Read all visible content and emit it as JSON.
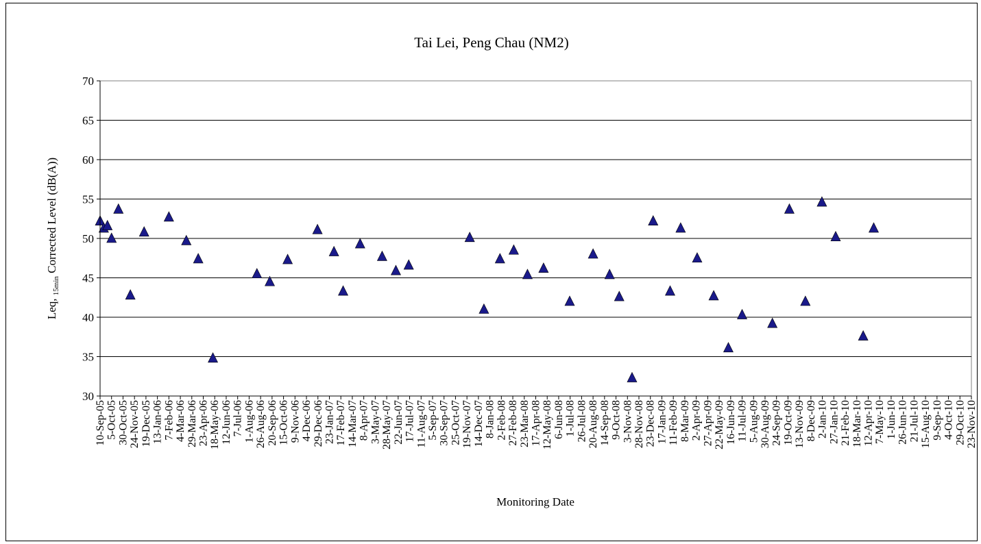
{
  "chart_data": {
    "type": "scatter",
    "title": "Tai Lei, Peng Chau (NM2)",
    "xlabel": "Monitoring Date",
    "ylabel": {
      "base": "Leq, ",
      "sub": "15min",
      "rest": " Corrected Level (dB(A))"
    },
    "ylim": [
      30,
      70
    ],
    "yticks": [
      30,
      35,
      40,
      45,
      50,
      55,
      60,
      65,
      70
    ],
    "grid": true,
    "marker": "triangle",
    "marker_color": "#1a1a8a",
    "x_start_label": "10-Sep-05",
    "x_end_label": "23-Nov-10",
    "tick_labels": [
      "10-Sep-05",
      "5-Oct-05",
      "30-Oct-05",
      "24-Nov-05",
      "19-Dec-05",
      "13-Jan-06",
      "7-Feb-06",
      "4-Mar-06",
      "29-Mar-06",
      "23-Apr-06",
      "18-May-06",
      "12-Jun-06",
      "7-Jul-06",
      "1-Aug-06",
      "26-Aug-06",
      "20-Sep-06",
      "15-Oct-06",
      "9-Nov-06",
      "4-Dec-06",
      "29-Dec-06",
      "23-Jan-07",
      "17-Feb-07",
      "14-Mar-07",
      "8-Apr-07",
      "3-May-07",
      "28-May-07",
      "22-Jun-07",
      "17-Jul-07",
      "11-Aug-07",
      "5-Sep-07",
      "30-Sep-07",
      "25-Oct-07",
      "19-Nov-07",
      "14-Dec-07",
      "8-Jan-08",
      "2-Feb-08",
      "27-Feb-08",
      "23-Mar-08",
      "17-Apr-08",
      "12-May-08",
      "6-Jun-08",
      "1-Jul-08",
      "26-Jul-08",
      "20-Aug-08",
      "14-Sep-08",
      "9-Oct-08",
      "3-Nov-08",
      "28-Nov-08",
      "23-Dec-08",
      "17-Jan-09",
      "11-Feb-09",
      "8-Mar-09",
      "2-Apr-09",
      "27-Apr-09",
      "22-May-09",
      "16-Jun-09",
      "11-Jul-09",
      "5-Aug-09",
      "30-Aug-09",
      "24-Sep-09",
      "19-Oct-09",
      "13-Nov-09",
      "8-Dec-09",
      "2-Jan-10",
      "27-Jan-10",
      "21-Feb-10",
      "18-Mar-10",
      "12-Apr-10",
      "7-May-10",
      "1-Jun-10",
      "26-Jun-10",
      "21-Jul-10",
      "15-Aug-10",
      "9-Sep-10",
      "4-Oct-10",
      "29-Oct-10",
      "23-Nov-10"
    ],
    "points": [
      {
        "x": "2005-09-10",
        "y": 52.2
      },
      {
        "x": "2005-09-18",
        "y": 51.3
      },
      {
        "x": "2005-09-26",
        "y": 51.6
      },
      {
        "x": "2005-10-05",
        "y": 50.0
      },
      {
        "x": "2005-10-20",
        "y": 53.7
      },
      {
        "x": "2005-11-15",
        "y": 42.8
      },
      {
        "x": "2005-12-15",
        "y": 50.8
      },
      {
        "x": "2006-02-07",
        "y": 52.7
      },
      {
        "x": "2006-03-17",
        "y": 49.7
      },
      {
        "x": "2006-04-12",
        "y": 47.4
      },
      {
        "x": "2006-05-14",
        "y": 34.8
      },
      {
        "x": "2006-08-18",
        "y": 45.5
      },
      {
        "x": "2006-09-15",
        "y": 44.5
      },
      {
        "x": "2006-10-24",
        "y": 47.3
      },
      {
        "x": "2006-12-28",
        "y": 51.1
      },
      {
        "x": "2007-02-02",
        "y": 48.3
      },
      {
        "x": "2007-02-22",
        "y": 43.3
      },
      {
        "x": "2007-03-31",
        "y": 49.3
      },
      {
        "x": "2007-05-18",
        "y": 47.7
      },
      {
        "x": "2007-06-17",
        "y": 45.9
      },
      {
        "x": "2007-07-15",
        "y": 46.6
      },
      {
        "x": "2007-11-25",
        "y": 50.1
      },
      {
        "x": "2007-12-26",
        "y": 41.0
      },
      {
        "x": "2008-01-30",
        "y": 47.4
      },
      {
        "x": "2008-02-29",
        "y": 48.5
      },
      {
        "x": "2008-03-30",
        "y": 45.4
      },
      {
        "x": "2008-05-04",
        "y": 46.2
      },
      {
        "x": "2008-06-30",
        "y": 42.0
      },
      {
        "x": "2008-08-20",
        "y": 48.0
      },
      {
        "x": "2008-09-25",
        "y": 45.4
      },
      {
        "x": "2008-10-16",
        "y": 42.6
      },
      {
        "x": "2008-11-13",
        "y": 32.3
      },
      {
        "x": "2008-12-29",
        "y": 52.2
      },
      {
        "x": "2009-02-04",
        "y": 43.3
      },
      {
        "x": "2009-02-27",
        "y": 51.3
      },
      {
        "x": "2009-04-04",
        "y": 47.5
      },
      {
        "x": "2009-05-10",
        "y": 42.7
      },
      {
        "x": "2009-06-11",
        "y": 36.1
      },
      {
        "x": "2009-07-11",
        "y": 40.3
      },
      {
        "x": "2009-09-15",
        "y": 39.2
      },
      {
        "x": "2009-10-22",
        "y": 53.7
      },
      {
        "x": "2009-11-26",
        "y": 42.0
      },
      {
        "x": "2010-01-01",
        "y": 54.6
      },
      {
        "x": "2010-01-31",
        "y": 50.2
      },
      {
        "x": "2010-04-01",
        "y": 37.6
      },
      {
        "x": "2010-04-24",
        "y": 51.3
      }
    ]
  }
}
